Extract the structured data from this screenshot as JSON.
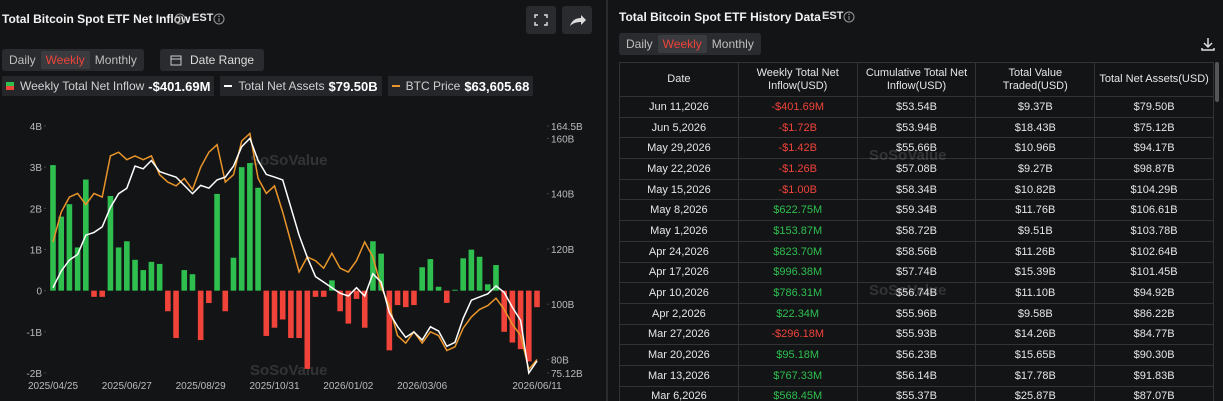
{
  "left_panel": {
    "title": "Total Bitcoin Spot ETF Net Inflow",
    "timezone": "EST",
    "tabs": [
      "Daily",
      "Weekly",
      "Monthly"
    ],
    "active_tab": 1,
    "date_range": "Date Range"
  },
  "watermark": "SoSoValue",
  "chart_data": {
    "type": "bar",
    "categories": [
      "2025/04/25",
      null,
      null,
      null,
      null,
      null,
      null,
      null,
      null,
      "2025/06/27",
      null,
      null,
      null,
      null,
      null,
      null,
      null,
      null,
      "2025/08/29",
      null,
      null,
      null,
      null,
      null,
      null,
      null,
      null,
      "2025/10/31",
      null,
      null,
      null,
      null,
      null,
      null,
      null,
      null,
      "2026/01/02",
      null,
      null,
      null,
      null,
      null,
      null,
      null,
      null,
      "2026/03/06",
      null,
      null,
      null,
      null,
      null,
      null,
      null,
      null,
      null,
      null,
      null,
      null,
      null,
      "2026/06/11"
    ],
    "series": [
      {
        "name": "Weekly Total Net Inflow",
        "type": "bar",
        "color": "#2fbf4f",
        "negative_color": "#f0433a",
        "latest_label": "-$401.69M",
        "values": [
          3.05,
          1.8,
          2.1,
          1.05,
          2.7,
          -0.15,
          -0.15,
          2.3,
          1.05,
          1.2,
          0.75,
          0.5,
          0.7,
          0.65,
          -0.5,
          -1.15,
          0.5,
          0.4,
          -1.2,
          -0.3,
          2.35,
          -0.5,
          0.8,
          3.0,
          3.1,
          2.5,
          -1.1,
          -0.9,
          -0.7,
          -1.15,
          -1.15,
          -1.9,
          -0.15,
          -0.15,
          0.25,
          -0.5,
          -0.8,
          -0.2,
          -0.9,
          1.2,
          0.9,
          -1.45,
          -0.35,
          -0.4,
          -0.35,
          0.56845,
          0.76733,
          0.09518,
          -0.29618,
          0.02234,
          0.78631,
          0.99638,
          0.8237,
          0.15387,
          0.62275,
          -1.0,
          -1.26,
          -1.42,
          -1.72,
          -0.40169
        ]
      },
      {
        "name": "Total Net Assets",
        "type": "line",
        "axis": "y2",
        "color": "#ffffff",
        "latest_label": "$79.50B",
        "values": [
          106,
          112,
          116,
          118,
          125,
          126,
          128,
          135,
          140,
          142,
          150,
          149,
          152,
          148,
          147,
          146,
          143,
          140,
          143,
          142,
          145,
          146,
          150,
          157,
          160,
          152,
          147,
          146,
          145,
          135,
          125,
          117,
          110,
          108,
          106,
          104,
          103,
          106,
          103,
          111,
          108,
          97,
          92,
          88,
          90,
          87.07,
          91.83,
          90.3,
          84.77,
          86.22,
          94.92,
          101.45,
          102.64,
          103.78,
          106.61,
          104.29,
          98.87,
          94.17,
          75.12,
          79.5
        ]
      },
      {
        "name": "BTC Price",
        "type": "line",
        "axis": "y3",
        "color": "#e9952a",
        "latest_label": "$63,605.68",
        "values": [
          95000,
          103000,
          107000,
          108000,
          105000,
          108000,
          107000,
          118000,
          119000,
          117000,
          118000,
          117000,
          118000,
          113000,
          111000,
          110000,
          112000,
          109000,
          115000,
          119000,
          121000,
          111000,
          113000,
          122000,
          124000,
          112000,
          108000,
          110000,
          103000,
          95000,
          87000,
          91000,
          90000,
          88000,
          92000,
          88000,
          87000,
          90000,
          95000,
          91000,
          83000,
          78000,
          70000,
          68000,
          71000,
          68000,
          71000,
          70000,
          66000,
          67000,
          72000,
          75000,
          77000,
          78000,
          80000,
          77000,
          73000,
          70000,
          61000,
          63605.68
        ]
      }
    ],
    "ylim": [
      -2,
      4
    ],
    "yticks": [
      {
        "value": 4,
        "label": "4B"
      },
      {
        "value": 3,
        "label": "3B"
      },
      {
        "value": 2,
        "label": "2B"
      },
      {
        "value": 1,
        "label": "1B"
      },
      0,
      {
        "value": -1,
        "label": "-1B"
      },
      {
        "value": -2,
        "label": "-2B"
      }
    ],
    "y2lim": [
      75.12,
      164.5
    ],
    "y2ticks": [
      {
        "value": 164.5,
        "label": "164.5B"
      },
      {
        "value": 160,
        "label": "160B"
      },
      {
        "value": 140,
        "label": "140B"
      },
      {
        "value": 120,
        "label": "120B"
      },
      {
        "value": 100,
        "label": "100B"
      },
      {
        "value": 80,
        "label": "80B"
      },
      {
        "value": 75.12,
        "label": "75.12B"
      }
    ],
    "y3lim": [
      60000,
      126000
    ],
    "grid": false
  },
  "right_panel": {
    "title": "Total Bitcoin Spot ETF History Data",
    "timezone": "EST",
    "tabs": [
      "Daily",
      "Weekly",
      "Monthly"
    ],
    "active_tab": 1,
    "table": {
      "columns": [
        "Date",
        "Weekly Total Net Inflow(USD)",
        "Cumulative Total Net Inflow(USD)",
        "Total Value Traded(USD)",
        "Total Net Assets(USD)"
      ],
      "rows": [
        [
          "Jun 11,2026",
          "-$401.69M",
          "$53.54B",
          "$9.37B",
          "$79.50B"
        ],
        [
          "Jun 5,2026",
          "-$1.72B",
          "$53.94B",
          "$18.43B",
          "$75.12B"
        ],
        [
          "May 29,2026",
          "-$1.42B",
          "$55.66B",
          "$10.96B",
          "$94.17B"
        ],
        [
          "May 22,2026",
          "-$1.26B",
          "$57.08B",
          "$9.27B",
          "$98.87B"
        ],
        [
          "May 15,2026",
          "-$1.00B",
          "$58.34B",
          "$10.82B",
          "$104.29B"
        ],
        [
          "May 8,2026",
          "$622.75M",
          "$59.34B",
          "$11.76B",
          "$106.61B"
        ],
        [
          "May 1,2026",
          "$153.87M",
          "$58.72B",
          "$9.51B",
          "$103.78B"
        ],
        [
          "Apr 24,2026",
          "$823.70M",
          "$58.56B",
          "$11.26B",
          "$102.64B"
        ],
        [
          "Apr 17,2026",
          "$996.38M",
          "$57.74B",
          "$15.39B",
          "$101.45B"
        ],
        [
          "Apr 10,2026",
          "$786.31M",
          "$56.74B",
          "$11.10B",
          "$94.92B"
        ],
        [
          "Apr 2,2026",
          "$22.34M",
          "$55.96B",
          "$9.58B",
          "$86.22B"
        ],
        [
          "Mar 27,2026",
          "-$296.18M",
          "$55.93B",
          "$14.26B",
          "$84.77B"
        ],
        [
          "Mar 20,2026",
          "$95.18M",
          "$56.23B",
          "$15.65B",
          "$90.30B"
        ],
        [
          "Mar 13,2026",
          "$767.33M",
          "$56.14B",
          "$17.78B",
          "$91.83B"
        ],
        [
          "Mar 6,2026",
          "$568.45M",
          "$55.37B",
          "$25.87B",
          "$87.07B"
        ]
      ]
    }
  }
}
